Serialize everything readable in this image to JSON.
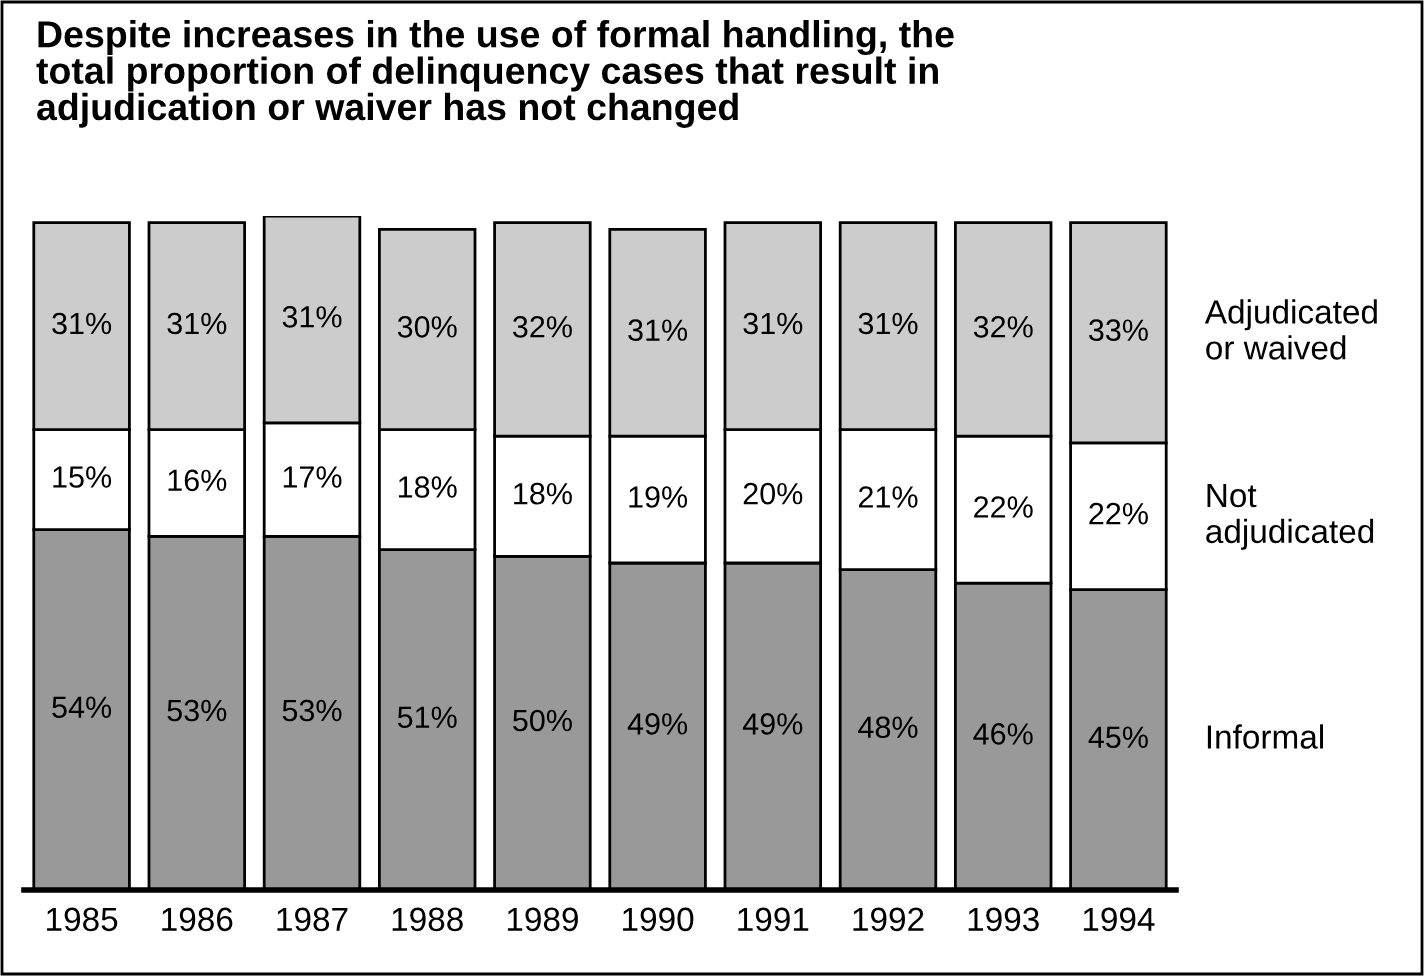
{
  "chart_data": {
    "type": "bar",
    "stacked": true,
    "legend": false,
    "grid": false,
    "title": "Despite increases in the use of formal handling, the\ntotal proportion of delinquency cases that result in\nadjudication or waiver has not changed",
    "categories": [
      "1985",
      "1986",
      "1987",
      "1988",
      "1989",
      "1990",
      "1991",
      "1992",
      "1993",
      "1994"
    ],
    "series": [
      {
        "name": "Informal",
        "color": "#999999",
        "values": [
          54,
          53,
          53,
          51,
          50,
          49,
          49,
          48,
          46,
          45
        ],
        "value_labels": [
          "54%",
          "53%",
          "53%",
          "51%",
          "50%",
          "49%",
          "49%",
          "48%",
          "46%",
          "45%"
        ]
      },
      {
        "name": "Not\nadjudicated",
        "color": "#ffffff",
        "values": [
          15,
          16,
          17,
          18,
          18,
          19,
          20,
          21,
          22,
          22
        ],
        "value_labels": [
          "15%",
          "16%",
          "17%",
          "18%",
          "18%",
          "19%",
          "20%",
          "21%",
          "22%",
          "22%"
        ]
      },
      {
        "name": "Adjudicated\nor waived",
        "color": "#cccccc",
        "values": [
          31,
          31,
          31,
          30,
          32,
          31,
          31,
          31,
          32,
          33
        ],
        "value_labels": [
          "31%",
          "31%",
          "31%",
          "30%",
          "32%",
          "31%",
          "31%",
          "31%",
          "32%",
          "33%"
        ]
      }
    ]
  }
}
